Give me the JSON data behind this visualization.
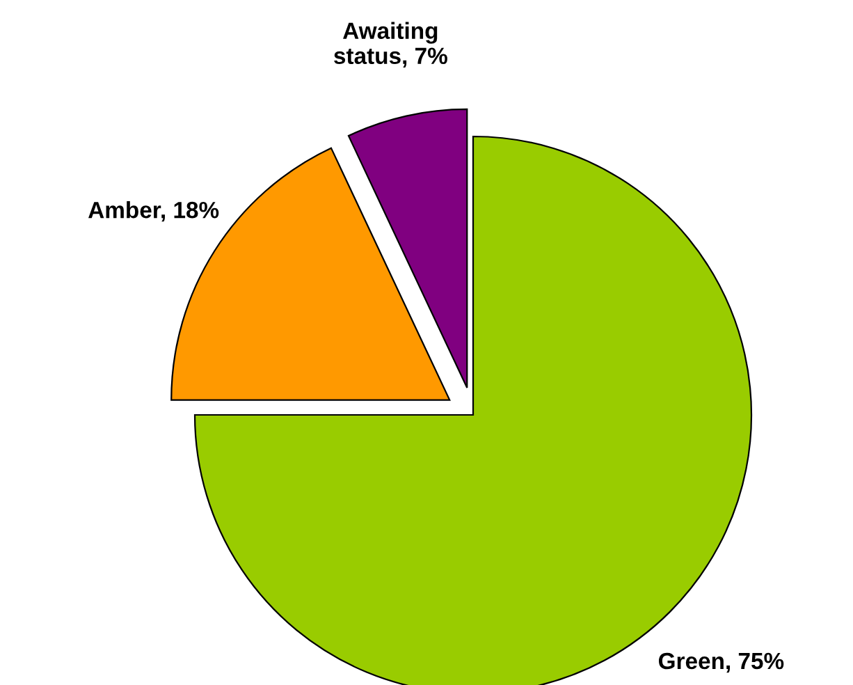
{
  "chart_data": {
    "type": "pie",
    "categories": [
      "Green",
      "Amber",
      "Awaiting status"
    ],
    "values": [
      75,
      18,
      7
    ],
    "colors": [
      "#99cc00",
      "#ff9900",
      "#800080"
    ],
    "value_labels": [
      "75%",
      "18%",
      "7%"
    ],
    "legend": false
  }
}
